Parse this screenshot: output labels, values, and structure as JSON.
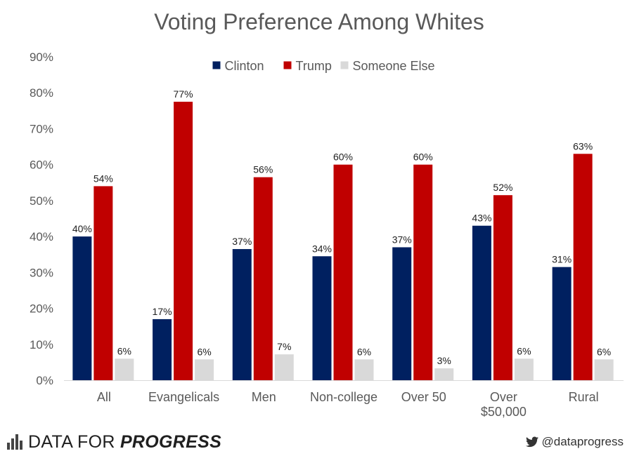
{
  "chart_data": {
    "type": "bar",
    "title": "Voting Preference Among Whites",
    "xlabel": "",
    "ylabel": "",
    "ylim": [
      0,
      90
    ],
    "yticks": [
      "0%",
      "10%",
      "20%",
      "30%",
      "40%",
      "50%",
      "60%",
      "70%",
      "80%",
      "90%"
    ],
    "legend_position": "top",
    "categories": [
      [
        "All"
      ],
      [
        "Evangelicals"
      ],
      [
        "Men"
      ],
      [
        "Non-college"
      ],
      [
        "Over 50"
      ],
      [
        "Over",
        "$50,000"
      ],
      [
        "Rural"
      ]
    ],
    "series": [
      {
        "name": "Clinton",
        "color": "#002060",
        "values": [
          40,
          17,
          36.5,
          34.5,
          37,
          43,
          31.5
        ],
        "labels": [
          "40%",
          "17%",
          "37%",
          "34%",
          "37%",
          "43%",
          "31%"
        ]
      },
      {
        "name": "Trump",
        "color": "#C00000",
        "values": [
          54,
          77.5,
          56.5,
          60,
          60,
          51.5,
          63
        ],
        "labels": [
          "54%",
          "77%",
          "56%",
          "60%",
          "60%",
          "52%",
          "63%"
        ]
      },
      {
        "name": "Someone Else",
        "color": "#D9D9D9",
        "values": [
          6,
          5.8,
          7.2,
          5.8,
          3.3,
          6,
          5.8
        ],
        "labels": [
          "6%",
          "6%",
          "7%",
          "6%",
          "3%",
          "6%",
          "6%"
        ]
      }
    ]
  },
  "footer": {
    "brand_regular": "DATA FOR ",
    "brand_bold": "PROGRESS",
    "handle": "@dataprogress",
    "brand_icon": "bar-chart-icon",
    "handle_icon": "twitter-bird-icon"
  }
}
